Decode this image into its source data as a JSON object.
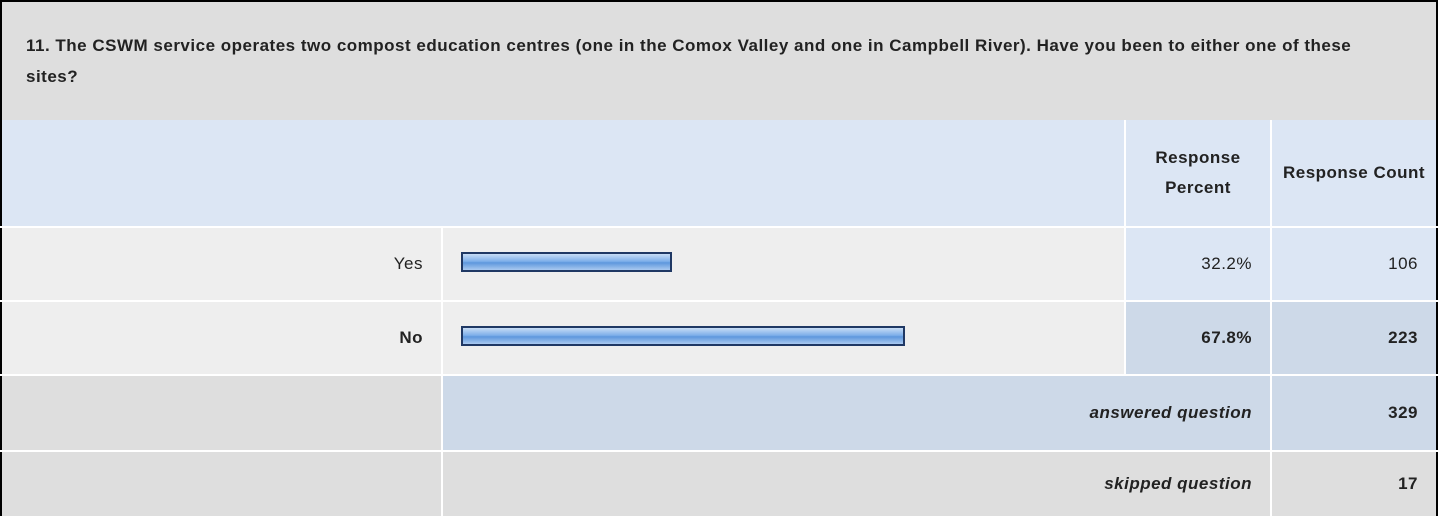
{
  "question": "11. The CSWM service operates two compost education centres (one in the Comox Valley and one in Campbell River). Have you been to either one of these sites?",
  "table": {
    "headers": [
      "Response Percent",
      "Response Count"
    ],
    "rows": [
      {
        "label": "Yes",
        "percent": {
          "value": 32.2,
          "label": "32.2%"
        },
        "count": 106
      },
      {
        "label": "No",
        "percent": {
          "value": 67.8,
          "label": "67.8%"
        },
        "count": 223
      }
    ],
    "answered": {
      "label": "answered question",
      "count": 329
    },
    "skipped": {
      "label": "skipped question",
      "count": 17
    }
  }
}
